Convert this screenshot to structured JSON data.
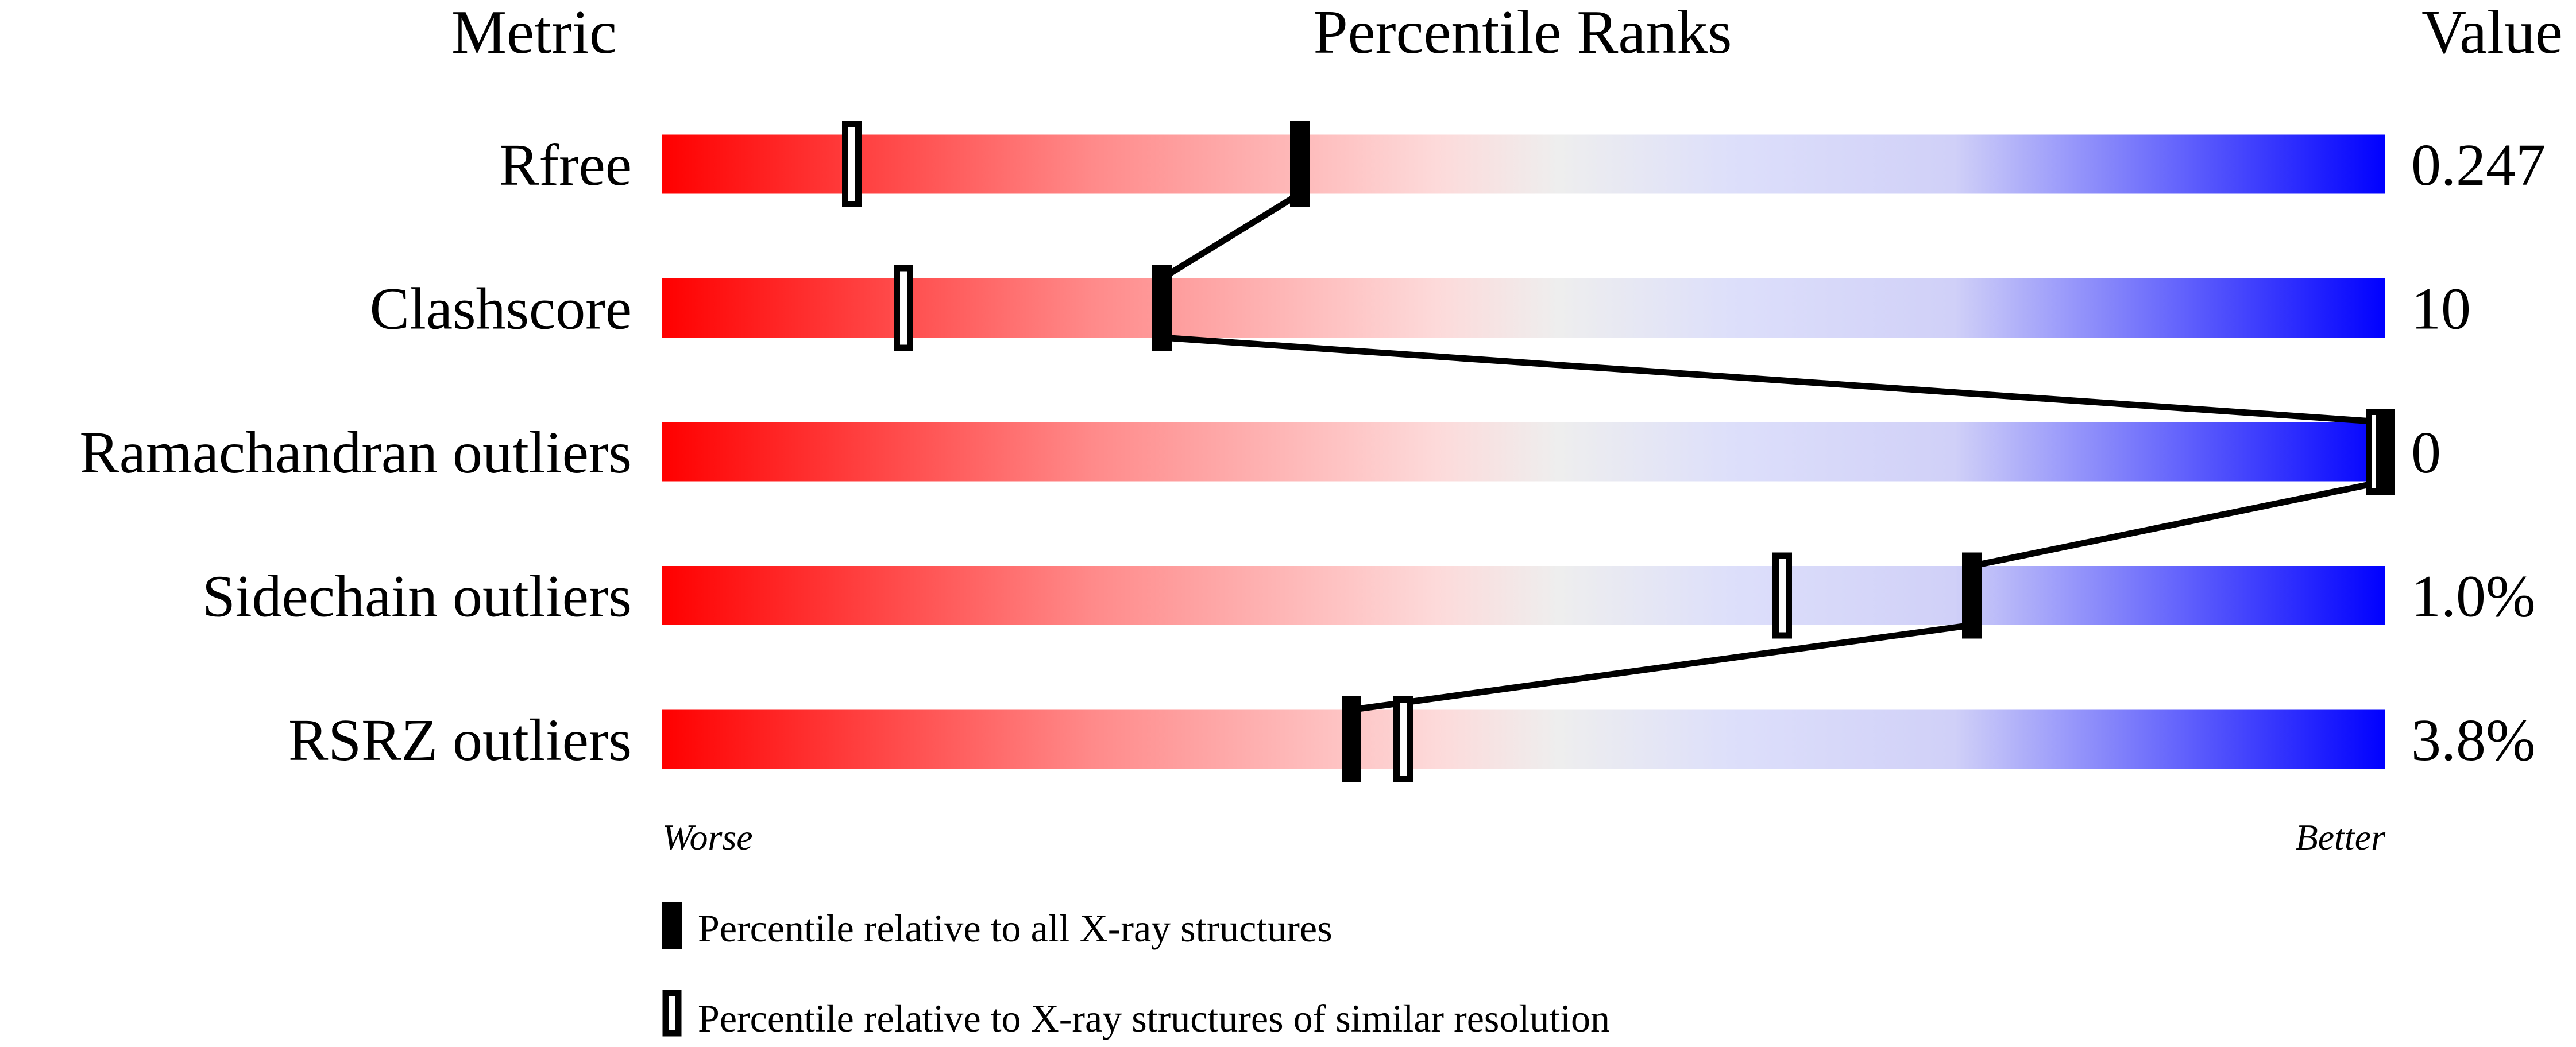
{
  "chart_data": {
    "type": "percentile-slider",
    "headers": {
      "metric": "Metric",
      "ranks": "Percentile Ranks",
      "value": "Value"
    },
    "xlim": [
      0,
      100
    ],
    "axis": {
      "left": "Worse",
      "right": "Better"
    },
    "gradient_colors": [
      "#ff0000",
      "#ff8a8a",
      "#fddada",
      "#eeeeee",
      "#dddffa",
      "#d0d0f8",
      "#0000ff"
    ],
    "metrics": [
      {
        "name": "Rfree",
        "value": "0.247",
        "percentile_all": 37,
        "percentile_similar": 11
      },
      {
        "name": "Clashscore",
        "value": "10",
        "percentile_all": 29,
        "percentile_similar": 14
      },
      {
        "name": "Ramachandran outliers",
        "value": "0",
        "percentile_all": 100,
        "percentile_similar": 100
      },
      {
        "name": "Sidechain outliers",
        "value": "1.0%",
        "percentile_all": 76,
        "percentile_similar": 65
      },
      {
        "name": "RSRZ outliers",
        "value": "3.8%",
        "percentile_all": 40,
        "percentile_similar": 43
      }
    ],
    "legend": {
      "all": "Percentile relative to all X-ray structures",
      "similar": "Percentile relative to X-ray structures of similar resolution"
    }
  }
}
